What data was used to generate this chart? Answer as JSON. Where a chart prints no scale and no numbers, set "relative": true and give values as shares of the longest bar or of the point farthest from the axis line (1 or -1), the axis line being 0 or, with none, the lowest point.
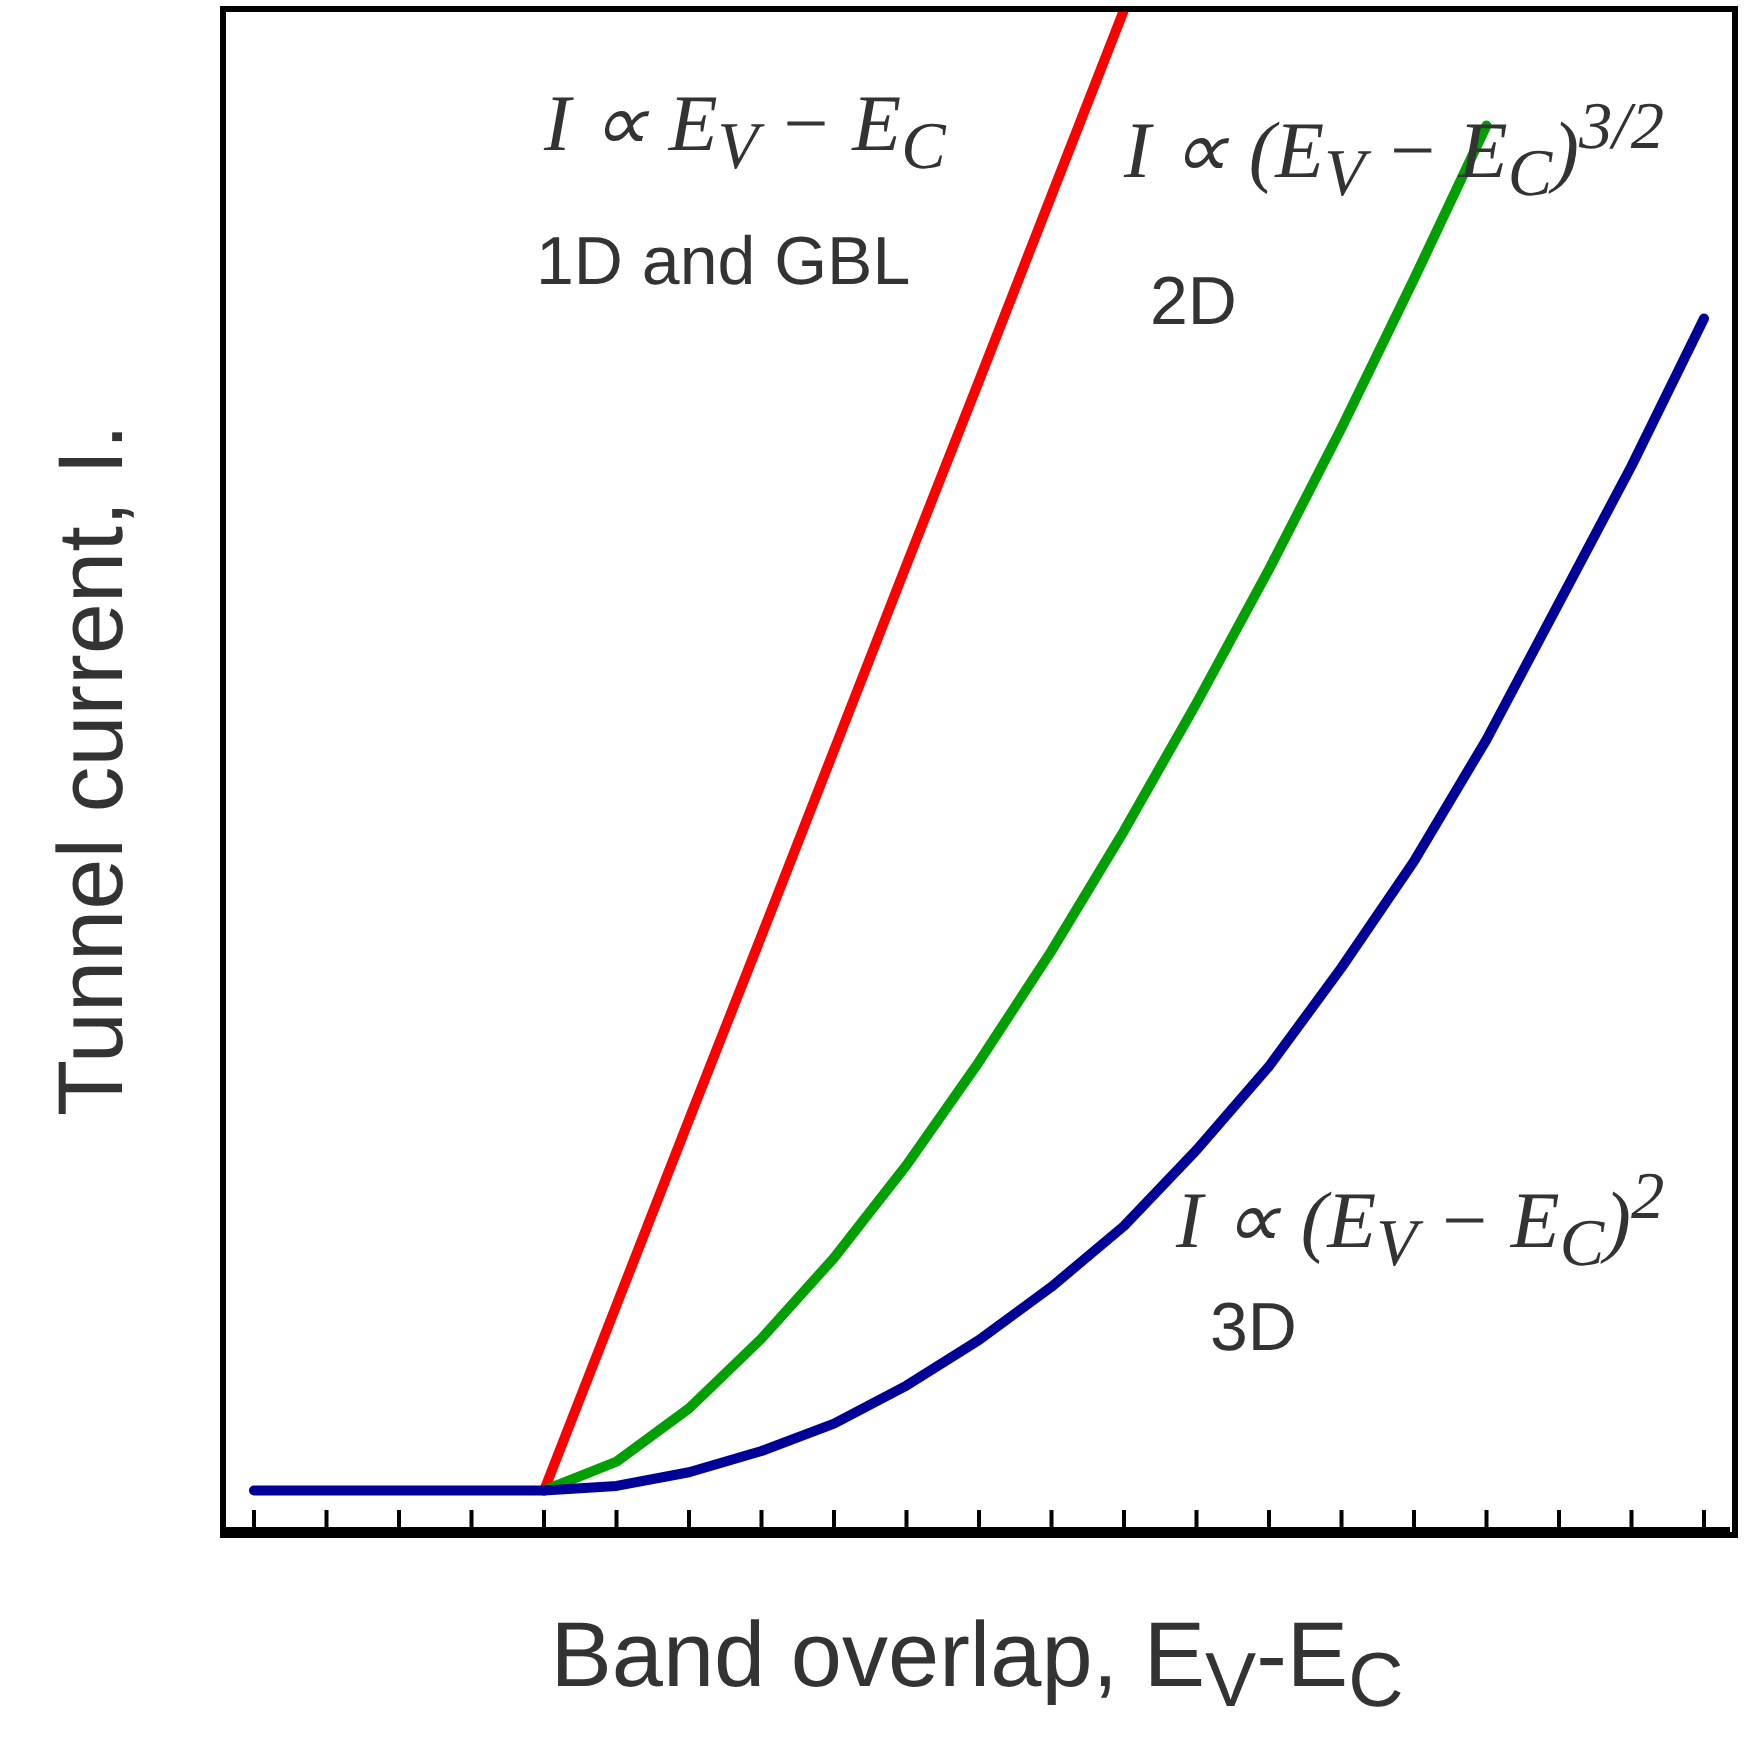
{
  "chart_data": {
    "type": "line",
    "relative": true,
    "xlabel": "Band overlap, E$_{V}$-E$_{C}$",
    "ylabel": "Tunnel current, I.",
    "categories": [
      null,
      null,
      null,
      null,
      null,
      null,
      null,
      null,
      null,
      null,
      null,
      null,
      null,
      null,
      null,
      null,
      null,
      null,
      null,
      null,
      null
    ],
    "annotations": [
      "I ∝ E$_{V}$ − E$_{C}$",
      "1D and GBL",
      "I ∝ (E$_{V}$ − E$_{C}$)$^{3/2}$",
      "2D",
      "I ∝ (E$_{V}$ − E$_{C}$)$^{2}$",
      "3D"
    ],
    "series": [
      {
        "color": "#ff0000",
        "values": [
          null,
          null,
          null,
          null,
          0.026,
          0.148,
          0.27,
          0.391,
          0.513,
          0.635,
          0.756,
          0.878,
          1.0,
          null,
          null,
          null,
          null,
          null,
          null,
          null,
          null
        ]
      },
      {
        "color": "#00a000",
        "values": [
          null,
          null,
          null,
          null,
          0.026,
          0.045,
          0.08,
          0.126,
          0.179,
          0.24,
          0.308,
          0.381,
          0.46,
          0.544,
          0.632,
          0.725,
          0.823,
          0.924,
          null,
          null,
          null
        ]
      },
      {
        "color": "#000099",
        "values": [
          0.026,
          0.026,
          0.026,
          0.026,
          0.026,
          0.029,
          0.038,
          0.052,
          0.07,
          0.095,
          0.125,
          0.16,
          0.2,
          0.25,
          0.305,
          0.37,
          0.44,
          0.52,
          0.61,
          0.7,
          0.797
        ]
      }
    ]
  }
}
